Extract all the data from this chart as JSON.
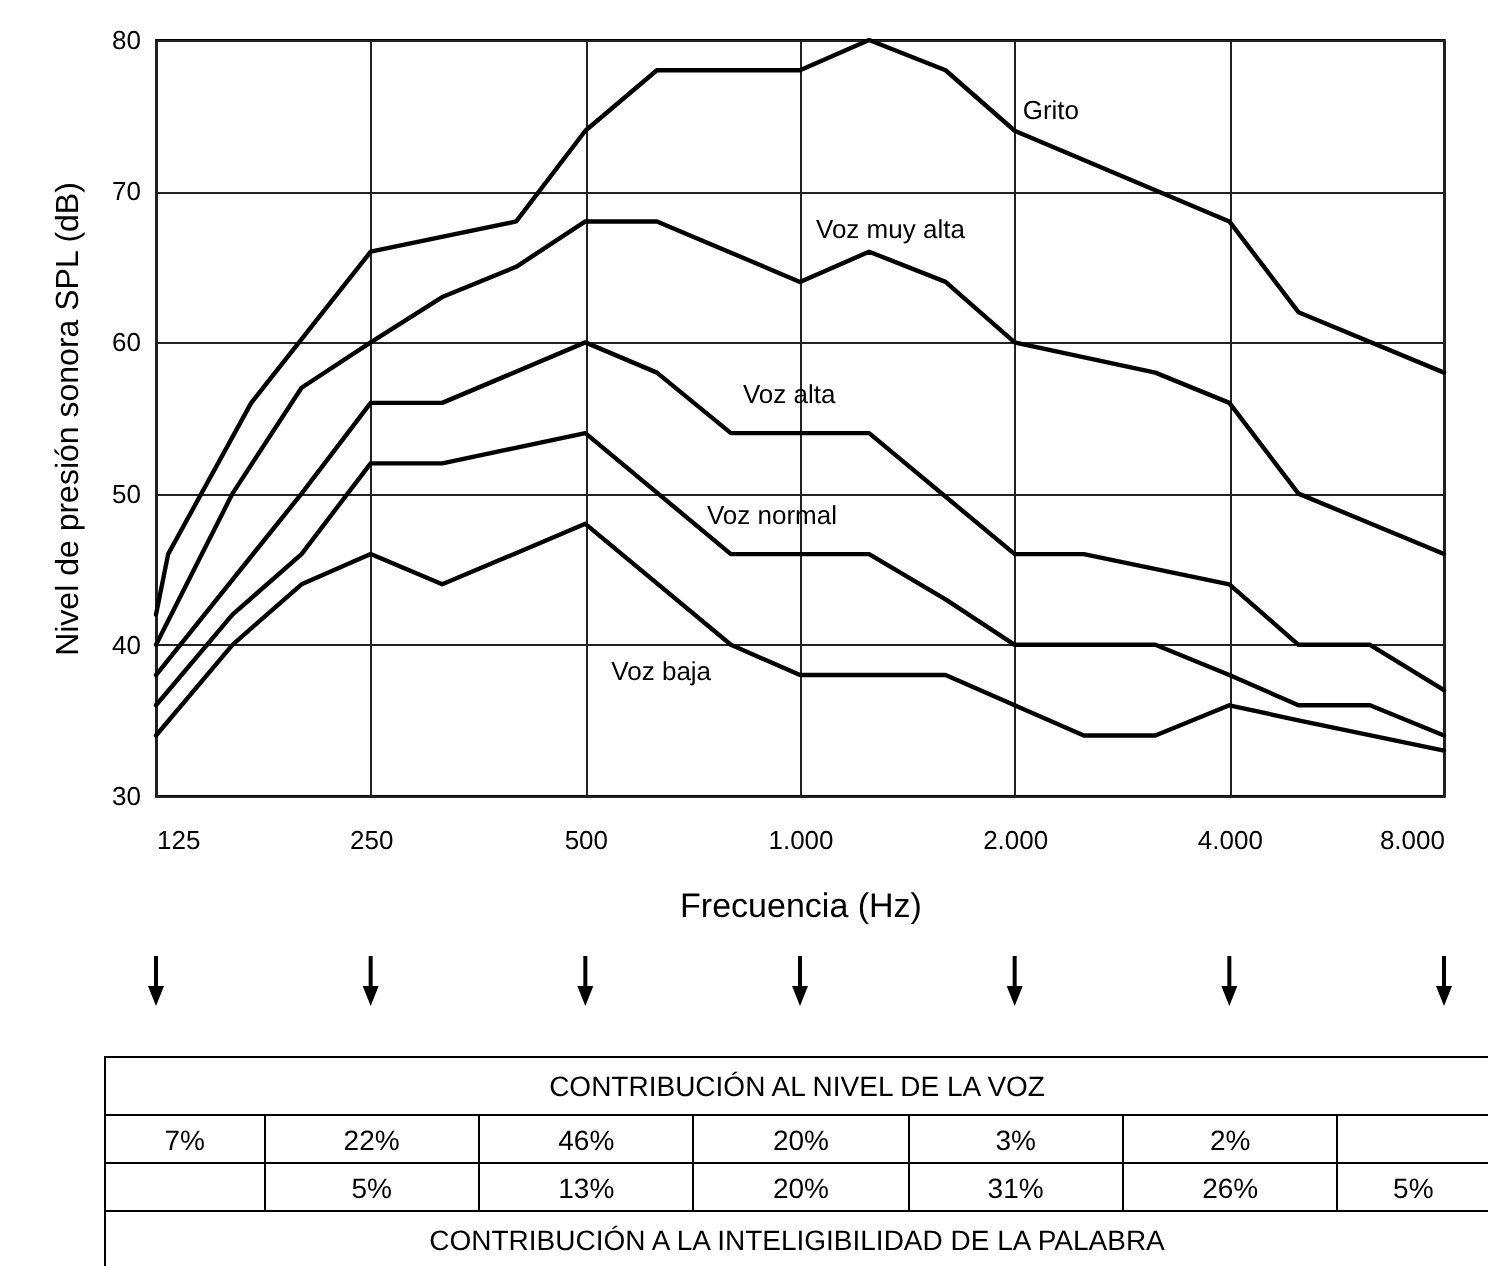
{
  "chart_data": [
    {
      "type": "line",
      "xlabel": "Frecuencia (Hz)",
      "ylabel": "Nivel de presión sonora SPL  (dB)",
      "log": "x",
      "xlim": [
        125,
        8000
      ],
      "ylim": [
        30,
        80
      ],
      "xticks": [
        125,
        250,
        500,
        {
          "value": 1000,
          "label": "1.000"
        },
        {
          "value": 2000,
          "label": "2.000"
        },
        {
          "value": 4000,
          "label": "4.000"
        },
        {
          "value": 8000,
          "label": "8.000"
        }
      ],
      "yticks": [
        30,
        40,
        50,
        60,
        70,
        80
      ],
      "grid": true,
      "legend": false,
      "line_style": "solid",
      "marker": "none",
      "series": [
        {
          "name": "Grito",
          "color": "#000000",
          "x": [
            125,
            130,
            170,
            250,
            400,
            500,
            630,
            1000,
            1250,
            1600,
            2000,
            4000,
            5000,
            8000
          ],
          "values": [
            42,
            46,
            56,
            66,
            68,
            74,
            78,
            78,
            80,
            78,
            74,
            68,
            62,
            58
          ]
        },
        {
          "name": "Voz muy alta",
          "color": "#000000",
          "x": [
            125,
            160,
            200,
            250,
            315,
            400,
            500,
            630,
            1000,
            1250,
            1600,
            2000,
            3150,
            4000,
            5000,
            8000
          ],
          "values": [
            40,
            50,
            57,
            60,
            63,
            65,
            68,
            68,
            64,
            66,
            64,
            60,
            58,
            56,
            50,
            46
          ]
        },
        {
          "name": "Voz alta",
          "color": "#000000",
          "x": [
            125,
            200,
            250,
            315,
            500,
            630,
            800,
            1250,
            2000,
            2500,
            4000,
            5000,
            6300,
            8000
          ],
          "values": [
            38,
            50,
            56,
            56,
            60,
            58,
            54,
            54,
            46,
            46,
            44,
            40,
            40,
            37
          ]
        },
        {
          "name": "Voz normal",
          "color": "#000000",
          "x": [
            125,
            160,
            200,
            250,
            315,
            500,
            800,
            1250,
            1600,
            2000,
            3150,
            4000,
            5000,
            6300,
            8000
          ],
          "values": [
            36,
            42,
            46,
            52,
            52,
            54,
            46,
            46,
            43,
            40,
            40,
            38,
            36,
            36,
            34
          ]
        },
        {
          "name": "Voz baja",
          "color": "#000000",
          "x": [
            125,
            160,
            200,
            250,
            315,
            500,
            800,
            1000,
            1600,
            2000,
            2500,
            3150,
            4000,
            5000,
            8000
          ],
          "values": [
            34,
            40,
            44,
            46,
            44,
            48,
            40,
            38,
            38,
            36,
            34,
            34,
            36,
            35,
            33
          ]
        }
      ]
    },
    {
      "type": "other",
      "title": "CONTRIBUCIÓN AL NIVEL DE LA VOZ",
      "cell_labels": [
        [
          "7%",
          "22%",
          "46%",
          "20%",
          "3%",
          "2%",
          null
        ],
        [
          null,
          "5%",
          "13%",
          "20%",
          "31%",
          "26%",
          "5%"
        ]
      ],
      "annotations": [
        "CONTRIBUCIÓN A LA INTELIGIBILIDAD DE LA PALABRA"
      ]
    }
  ]
}
